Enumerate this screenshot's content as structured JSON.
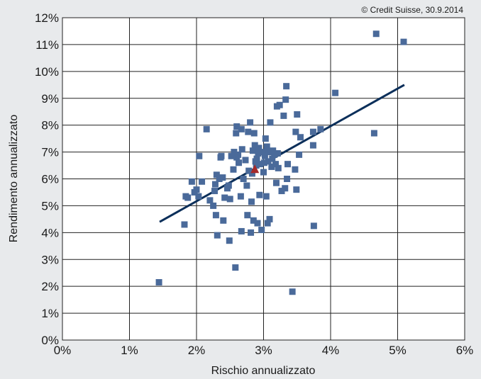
{
  "chart_data": {
    "type": "scatter",
    "credit": "© Credit Suisse, 30.9.2014",
    "xlabel": "Rischio annualizzato",
    "ylabel": "Rendimento annualizzato",
    "xlim": [
      0,
      6
    ],
    "ylim": [
      0,
      12
    ],
    "x_ticks": [
      "0%",
      "1%",
      "2%",
      "3%",
      "4%",
      "5%",
      "6%"
    ],
    "y_ticks": [
      "0%",
      "1%",
      "2%",
      "3%",
      "4%",
      "5%",
      "6%",
      "7%",
      "8%",
      "9%",
      "10%",
      "11%",
      "12%"
    ],
    "grid": true,
    "colors": {
      "points": "#4a6a9a",
      "trend": "#0b2f5a",
      "highlight": "#a52a2a",
      "plot_bg": "#ffffff",
      "page_bg": "#e8eaec"
    },
    "series": [
      {
        "marker": "square",
        "points": [
          [
            1.44,
            2.15
          ],
          [
            1.82,
            4.3
          ],
          [
            1.84,
            5.35
          ],
          [
            1.87,
            5.3
          ],
          [
            1.93,
            5.9
          ],
          [
            1.97,
            5.5
          ],
          [
            2.0,
            5.6
          ],
          [
            2.03,
            5.35
          ],
          [
            2.04,
            6.85
          ],
          [
            2.08,
            5.9
          ],
          [
            2.15,
            7.85
          ],
          [
            2.2,
            5.2
          ],
          [
            2.25,
            5.0
          ],
          [
            2.27,
            5.55
          ],
          [
            2.28,
            5.8
          ],
          [
            2.29,
            4.65
          ],
          [
            2.3,
            6.15
          ],
          [
            2.31,
            3.9
          ],
          [
            2.34,
            6.0
          ],
          [
            2.36,
            6.8
          ],
          [
            2.37,
            6.85
          ],
          [
            2.39,
            6.05
          ],
          [
            2.4,
            4.45
          ],
          [
            2.42,
            5.3
          ],
          [
            2.46,
            5.65
          ],
          [
            2.48,
            5.75
          ],
          [
            2.49,
            3.7
          ],
          [
            2.5,
            5.25
          ],
          [
            2.52,
            6.85
          ],
          [
            2.55,
            6.35
          ],
          [
            2.56,
            7.0
          ],
          [
            2.58,
            2.7
          ],
          [
            2.59,
            7.7
          ],
          [
            2.6,
            7.95
          ],
          [
            2.6,
            6.8
          ],
          [
            2.62,
            6.9
          ],
          [
            2.63,
            6.6
          ],
          [
            2.66,
            5.35
          ],
          [
            2.67,
            4.05
          ],
          [
            2.67,
            7.85
          ],
          [
            2.68,
            7.1
          ],
          [
            2.7,
            6.0
          ],
          [
            2.73,
            6.7
          ],
          [
            2.75,
            5.75
          ],
          [
            2.76,
            4.65
          ],
          [
            2.77,
            7.75
          ],
          [
            2.78,
            6.3
          ],
          [
            2.8,
            8.1
          ],
          [
            2.81,
            4.0
          ],
          [
            2.82,
            5.15
          ],
          [
            2.83,
            6.2
          ],
          [
            2.84,
            7.05
          ],
          [
            2.85,
            4.45
          ],
          [
            2.86,
            7.7
          ],
          [
            2.87,
            7.25
          ],
          [
            2.88,
            6.65
          ],
          [
            2.89,
            6.5
          ],
          [
            2.9,
            6.75
          ],
          [
            2.91,
            4.35
          ],
          [
            2.92,
            6.95
          ],
          [
            2.93,
            7.15
          ],
          [
            2.94,
            5.4
          ],
          [
            2.95,
            6.55
          ],
          [
            2.97,
            4.1
          ],
          [
            2.99,
            7.0
          ],
          [
            3.0,
            6.25
          ],
          [
            3.01,
            6.6
          ],
          [
            3.02,
            6.85
          ],
          [
            3.03,
            7.5
          ],
          [
            3.04,
            5.35
          ],
          [
            3.05,
            7.2
          ],
          [
            3.06,
            4.35
          ],
          [
            3.07,
            6.65
          ],
          [
            3.08,
            7.0
          ],
          [
            3.09,
            4.5
          ],
          [
            3.1,
            8.1
          ],
          [
            3.12,
            6.45
          ],
          [
            3.13,
            6.75
          ],
          [
            3.14,
            7.05
          ],
          [
            3.16,
            6.9
          ],
          [
            3.18,
            6.55
          ],
          [
            3.19,
            5.85
          ],
          [
            3.2,
            8.7
          ],
          [
            3.21,
            6.95
          ],
          [
            3.22,
            6.4
          ],
          [
            3.24,
            8.75
          ],
          [
            3.27,
            5.55
          ],
          [
            3.3,
            8.35
          ],
          [
            3.32,
            5.65
          ],
          [
            3.33,
            8.95
          ],
          [
            3.34,
            9.45
          ],
          [
            3.35,
            6.0
          ],
          [
            3.36,
            6.55
          ],
          [
            3.43,
            1.8
          ],
          [
            3.47,
            6.35
          ],
          [
            3.48,
            7.75
          ],
          [
            3.49,
            5.6
          ],
          [
            3.5,
            8.4
          ],
          [
            3.53,
            6.9
          ],
          [
            3.55,
            7.55
          ],
          [
            3.74,
            7.75
          ],
          [
            3.74,
            7.25
          ],
          [
            3.75,
            4.25
          ],
          [
            3.85,
            7.85
          ],
          [
            4.07,
            9.2
          ],
          [
            4.65,
            7.7
          ],
          [
            4.68,
            11.4
          ],
          [
            5.09,
            11.1
          ]
        ]
      }
    ],
    "highlight_point": {
      "marker": "triangle",
      "x": 2.87,
      "y": 6.35
    },
    "trend_line": {
      "x": [
        1.45,
        5.1
      ],
      "y": [
        4.4,
        9.5
      ]
    }
  }
}
